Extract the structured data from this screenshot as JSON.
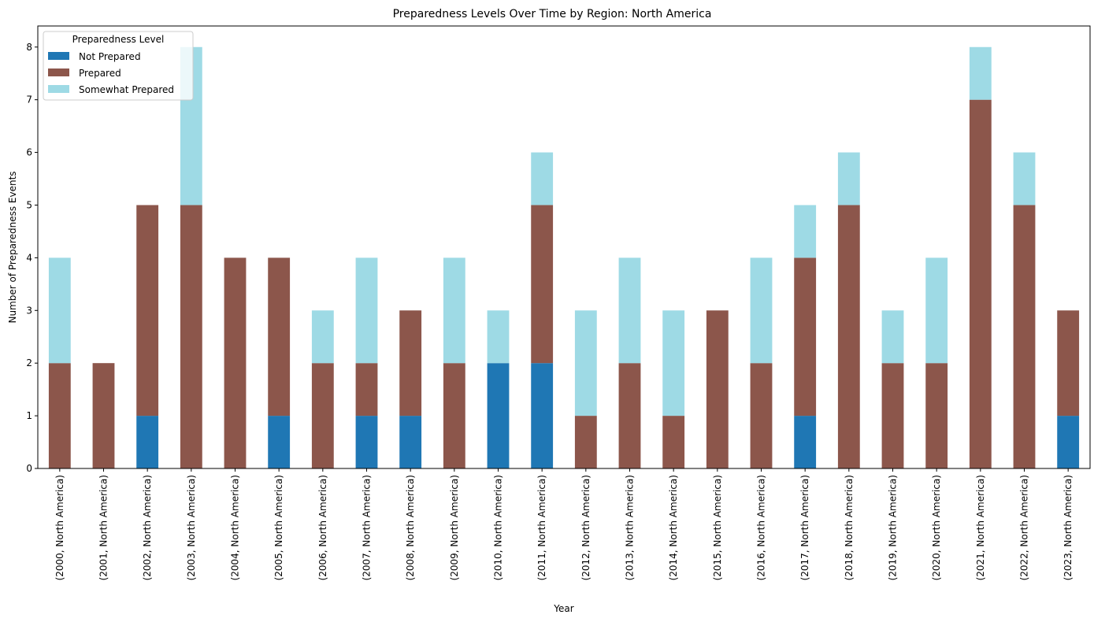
{
  "chart_data": {
    "type": "bar",
    "stacked": true,
    "title": "Preparedness Levels Over Time by Region: North America",
    "xlabel": "Year",
    "ylabel": "Number of Preparedness Events",
    "ylim": [
      0,
      8.4
    ],
    "yticks": [
      0,
      1,
      2,
      3,
      4,
      5,
      6,
      7,
      8
    ],
    "grid": false,
    "legend": {
      "title": "Preparedness Level",
      "placement": "top-left"
    },
    "categories": [
      "(2000, North America)",
      "(2001, North America)",
      "(2002, North America)",
      "(2003, North America)",
      "(2004, North America)",
      "(2005, North America)",
      "(2006, North America)",
      "(2007, North America)",
      "(2008, North America)",
      "(2009, North America)",
      "(2010, North America)",
      "(2011, North America)",
      "(2012, North America)",
      "(2013, North America)",
      "(2014, North America)",
      "(2015, North America)",
      "(2016, North America)",
      "(2017, North America)",
      "(2018, North America)",
      "(2019, North America)",
      "(2020, North America)",
      "(2021, North America)",
      "(2022, North America)",
      "(2023, North America)"
    ],
    "series": [
      {
        "name": "Not Prepared",
        "color": "#1f77b4",
        "values": [
          0,
          0,
          1,
          0,
          0,
          1,
          0,
          1,
          1,
          0,
          2,
          2,
          0,
          0,
          0,
          0,
          0,
          1,
          0,
          0,
          0,
          0,
          0,
          1
        ]
      },
      {
        "name": "Prepared",
        "color": "#8c564b",
        "values": [
          2,
          2,
          4,
          5,
          4,
          3,
          2,
          1,
          2,
          2,
          0,
          3,
          1,
          2,
          1,
          3,
          2,
          3,
          5,
          2,
          2,
          7,
          5,
          2
        ]
      },
      {
        "name": "Somewhat Prepared",
        "color": "#9edae5",
        "values": [
          2,
          0,
          0,
          3,
          0,
          0,
          1,
          2,
          0,
          2,
          1,
          1,
          2,
          2,
          2,
          0,
          2,
          1,
          1,
          1,
          2,
          1,
          1,
          0
        ]
      }
    ]
  }
}
